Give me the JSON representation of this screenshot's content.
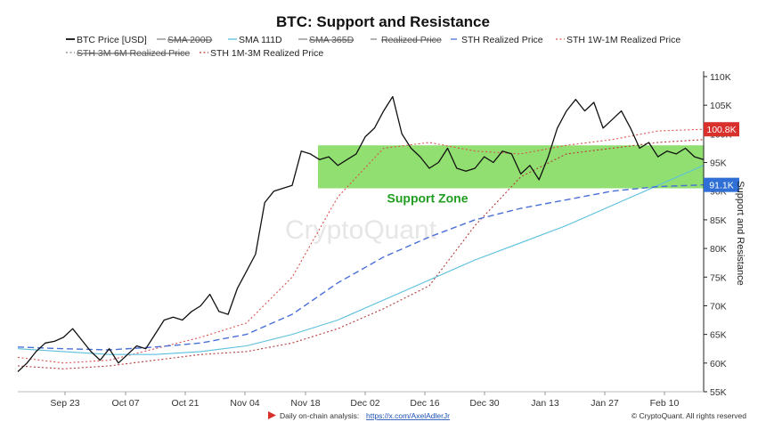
{
  "chart_data": {
    "type": "line",
    "title": "BTC: Support and Resistance",
    "ylabel": "Support and Resistance",
    "xlabel": "",
    "ylim": [
      55000,
      110000
    ],
    "x_ticks": [
      "Sep 23",
      "Oct 07",
      "Oct 21",
      "Nov 04",
      "Nov 18",
      "Dec 02",
      "Dec 16",
      "Dec 30",
      "Jan 13",
      "Jan 27",
      "Feb 10"
    ],
    "y_ticks": [
      {
        "value": 55000,
        "label": "55K"
      },
      {
        "value": 60000,
        "label": "60K"
      },
      {
        "value": 65000,
        "label": "65K"
      },
      {
        "value": 70000,
        "label": "70K"
      },
      {
        "value": 75000,
        "label": "75K"
      },
      {
        "value": 80000,
        "label": "80K"
      },
      {
        "value": 85000,
        "label": "85K"
      },
      {
        "value": 90000,
        "label": "90K"
      },
      {
        "value": 95000,
        "label": "95K"
      },
      {
        "value": 100000,
        "label": "100K"
      },
      {
        "value": 105000,
        "label": "105K"
      },
      {
        "value": 110000,
        "label": "110K"
      }
    ],
    "legend": [
      {
        "label": "BTC Price [USD]",
        "color": "#111111",
        "dash": "solid",
        "struck": false
      },
      {
        "label": "SMA 200D",
        "color": "#888888",
        "dash": "solid",
        "struck": true
      },
      {
        "label": "SMA 111D",
        "color": "#5bc0de",
        "dash": "solid",
        "struck": false
      },
      {
        "label": "SMA 365D",
        "color": "#888888",
        "dash": "solid",
        "struck": true
      },
      {
        "label": "Realized Price",
        "color": "#888888",
        "dash": "dash",
        "struck": true
      },
      {
        "label": "STH Realized Price",
        "color": "#4a6fd8",
        "dash": "dash",
        "struck": false
      },
      {
        "label": "STH 1W-1M Realized Price",
        "color": "#d9534f",
        "dash": "dot",
        "struck": false
      },
      {
        "label": "STH 3M-6M Realized Price",
        "color": "#888888",
        "dash": "dot",
        "struck": true
      },
      {
        "label": "STH 1M-3M Realized Price",
        "color": "#b33a3a",
        "dash": "dot",
        "struck": false
      }
    ],
    "support_zone": {
      "low": 90500,
      "high": 98000,
      "from": "Nov 21",
      "to": "Feb 19",
      "label": "Support Zone",
      "color": "#7ed957"
    },
    "badges": [
      {
        "value": 100800,
        "label": "100.8K",
        "color": "#d9302c"
      },
      {
        "value": 91100,
        "label": "91.1K",
        "color": "#2f6fd6"
      }
    ],
    "series": [
      {
        "name": "BTC Price [USD]",
        "color": "#111111",
        "x": [
          0,
          2,
          4,
          6,
          8,
          10,
          12,
          14,
          16,
          18,
          20,
          22,
          24,
          26,
          28,
          30,
          32,
          34,
          36,
          38,
          40,
          42,
          44,
          46,
          48,
          50,
          52,
          54,
          56,
          58,
          60,
          62,
          64,
          66,
          68,
          70,
          72,
          74,
          76,
          78,
          80,
          82,
          84,
          86,
          88,
          90,
          92,
          94,
          96,
          98,
          100,
          102,
          104,
          106,
          108,
          110,
          112,
          114,
          116,
          118,
          120,
          122,
          124,
          126,
          128,
          130,
          132,
          134,
          136,
          138,
          140,
          142,
          144,
          146,
          148,
          150
        ],
        "y": [
          58500,
          60000,
          62000,
          63500,
          63800,
          64500,
          66000,
          64000,
          62000,
          60500,
          62500,
          60000,
          61500,
          63000,
          62500,
          65000,
          67500,
          68000,
          67500,
          69000,
          70000,
          72000,
          69000,
          68500,
          73000,
          76000,
          79000,
          88000,
          90000,
          90500,
          91000,
          97000,
          96500,
          95500,
          96000,
          94500,
          95500,
          96500,
          99500,
          101000,
          104000,
          106500,
          100000,
          97500,
          96000,
          94000,
          95000,
          97500,
          94000,
          93500,
          94000,
          96000,
          95000,
          97000,
          96500,
          93000,
          94500,
          92000,
          96000,
          101000,
          104000,
          106000,
          104000,
          105500,
          101000,
          102500,
          104000,
          101000,
          97500,
          98500,
          96000,
          97000,
          96500,
          97500,
          96000,
          95500
        ]
      },
      {
        "name": "SMA 111D",
        "color": "#5bc0de",
        "x": [
          0,
          10,
          20,
          30,
          40,
          50,
          60,
          70,
          80,
          90,
          100,
          110,
          120,
          130,
          140,
          150
        ],
        "y": [
          62500,
          62000,
          61500,
          61500,
          62000,
          63000,
          65000,
          67500,
          71000,
          74500,
          78000,
          81000,
          84000,
          87500,
          91000,
          94500
        ]
      },
      {
        "name": "STH Realized Price",
        "color": "#4a6fd8",
        "x": [
          0,
          10,
          20,
          30,
          40,
          50,
          60,
          70,
          80,
          90,
          100,
          110,
          120,
          130,
          140,
          150
        ],
        "y": [
          62800,
          62500,
          62300,
          62800,
          63500,
          65000,
          68500,
          74000,
          78500,
          82000,
          85000,
          87000,
          88500,
          90000,
          90800,
          91100
        ]
      },
      {
        "name": "STH 1W-1M Realized Price",
        "color": "#d9534f",
        "x": [
          0,
          10,
          20,
          30,
          40,
          50,
          60,
          70,
          80,
          90,
          100,
          110,
          120,
          130,
          140,
          150
        ],
        "y": [
          61000,
          60000,
          60500,
          62500,
          64500,
          67000,
          75000,
          89000,
          97500,
          98500,
          97000,
          96500,
          98000,
          99000,
          100500,
          100800
        ]
      },
      {
        "name": "STH 1M-3M Realized Price",
        "color": "#b33a3a",
        "x": [
          0,
          10,
          20,
          30,
          40,
          50,
          60,
          70,
          80,
          90,
          100,
          110,
          120,
          130,
          140,
          150
        ],
        "y": [
          59500,
          59000,
          59500,
          60500,
          61500,
          62000,
          63500,
          66000,
          69500,
          73500,
          84000,
          92500,
          96500,
          97500,
          98500,
          99000
        ]
      }
    ]
  },
  "watermark": "CryptoQuant",
  "footer": {
    "analysis_label": "Daily on-chain analysis:",
    "analysis_link": "https://x.com/AxelAdlerJr",
    "copyright": "© CryptoQuant. All rights reserved"
  }
}
